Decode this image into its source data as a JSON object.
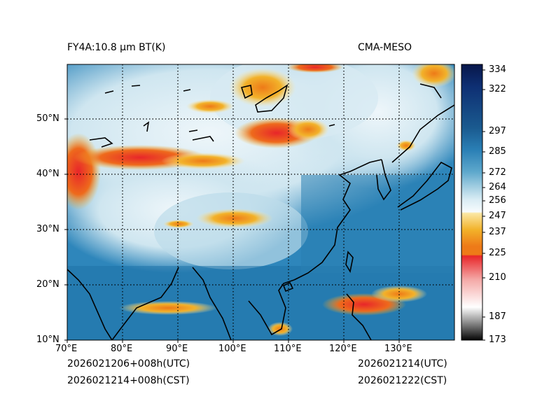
{
  "header": {
    "title": "FY4A:10.8 μm BT(K)",
    "source": "CMA-MESO"
  },
  "footer": {
    "init_utc": "2026021206+008h(UTC)",
    "init_cst": "2026021214+008h(CST)",
    "valid_utc": "2026021214(UTC)",
    "valid_cst": "2026021222(CST)"
  },
  "map": {
    "lon_labels": [
      "70°E",
      "80°E",
      "90°E",
      "100°E",
      "110°E",
      "120°E",
      "130°E"
    ],
    "lat_labels": [
      "50°N",
      "40°N",
      "30°N",
      "20°N",
      "10°N"
    ]
  },
  "colorbar": {
    "labels": [
      "334",
      "322",
      "297",
      "285",
      "272",
      "264",
      "256",
      "247",
      "237",
      "225",
      "210",
      "187",
      "173"
    ]
  },
  "chart_data": {
    "type": "heatmap",
    "title": "FY4A:10.8 μm BT(K)",
    "variable": "Brightness temperature",
    "unit": "K",
    "lon_range": [
      70,
      140
    ],
    "lat_range": [
      10,
      60
    ],
    "colorbar_range": [
      173,
      337
    ],
    "colorbar_ticks": [
      334,
      322,
      297,
      285,
      272,
      264,
      256,
      247,
      237,
      225,
      210,
      187,
      173
    ],
    "colors": {
      "warm_ocean": "#2a7fb5",
      "mid_cloud": "#cfe6f0",
      "cold_top_yellow": "#f2b22a",
      "cold_top_orange": "#ee7a18",
      "coldest_red": "#e8262a"
    }
  }
}
